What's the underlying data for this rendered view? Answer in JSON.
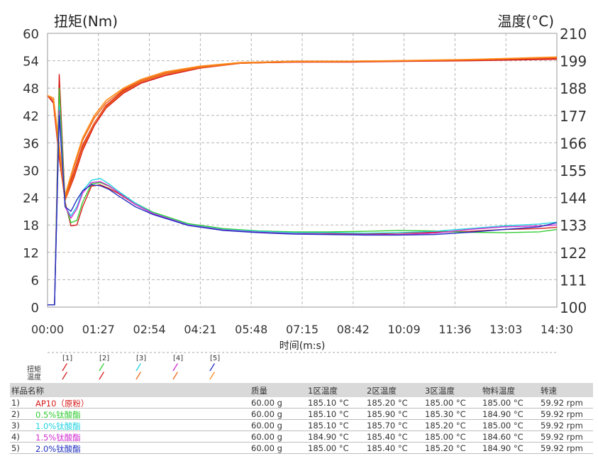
{
  "chart_data": {
    "type": "line",
    "y_left_label": "扭矩(Nm)",
    "y_right_label": "温度(°C)",
    "xlabel": "时间(m:s)",
    "x_ticks": [
      "00:00",
      "01:27",
      "02:54",
      "04:21",
      "05:48",
      "07:15",
      "08:42",
      "10:09",
      "11:36",
      "13:03",
      "14:30"
    ],
    "y_left_ticks": [
      "0",
      "6",
      "12",
      "18",
      "24",
      "30",
      "36",
      "42",
      "48",
      "54",
      "60"
    ],
    "y_right_ticks": [
      "100",
      "111",
      "122",
      "133",
      "144",
      "155",
      "166",
      "177",
      "188",
      "199",
      "210"
    ],
    "xlim_seconds": [
      0,
      870
    ],
    "ylim_left": [
      0,
      60
    ],
    "ylim_right": [
      100,
      210
    ],
    "grid": true,
    "torque_series": [
      {
        "name": "[1]",
        "color": "#d81b1b",
        "x": [
          0,
          12,
          20,
          30,
          40,
          50,
          60,
          75,
          90,
          105,
          120,
          150,
          180,
          240,
          300,
          360,
          420,
          480,
          540,
          600,
          660,
          720,
          780,
          840,
          870
        ],
        "y": [
          0.5,
          0.5,
          51,
          23,
          17.8,
          18,
          22,
          26.5,
          26.8,
          26,
          25,
          22.5,
          20.5,
          18,
          17,
          16.5,
          16.3,
          16.2,
          16,
          16.2,
          16.4,
          16.6,
          17,
          17.2,
          17.5
        ]
      },
      {
        "name": "[2]",
        "color": "#33cc33",
        "x": [
          0,
          12,
          20,
          30,
          40,
          50,
          60,
          75,
          90,
          105,
          120,
          150,
          180,
          240,
          300,
          360,
          420,
          480,
          540,
          600,
          660,
          720,
          780,
          840,
          870
        ],
        "y": [
          0.5,
          0.5,
          48,
          22.5,
          18.5,
          19,
          23,
          27,
          27.3,
          26.5,
          25.2,
          22.8,
          20.8,
          18.3,
          17.2,
          16.7,
          16.5,
          16.5,
          16.6,
          16.8,
          16.7,
          16.4,
          16.3,
          16.5,
          17
        ]
      },
      {
        "name": "[3]",
        "color": "#22d3e0",
        "x": [
          0,
          12,
          20,
          30,
          40,
          50,
          60,
          75,
          90,
          105,
          120,
          150,
          180,
          240,
          300,
          360,
          420,
          480,
          540,
          600,
          660,
          720,
          780,
          840,
          870
        ],
        "y": [
          0.5,
          0.5,
          44,
          22,
          20,
          22,
          25.5,
          27.8,
          28.2,
          27,
          25.5,
          22.8,
          20.6,
          18.1,
          17,
          16.6,
          16.3,
          16.3,
          16.2,
          16.3,
          16.6,
          17.2,
          17.8,
          18.2,
          18.6
        ]
      },
      {
        "name": "[4]",
        "color": "#d02cd0",
        "x": [
          0,
          12,
          20,
          30,
          40,
          50,
          60,
          75,
          90,
          105,
          120,
          150,
          180,
          240,
          300,
          360,
          420,
          480,
          540,
          600,
          660,
          720,
          780,
          840,
          870
        ],
        "y": [
          0.5,
          0.5,
          43,
          22,
          19.5,
          21.5,
          25,
          27.3,
          27.5,
          26.6,
          25.2,
          22.5,
          20.5,
          18,
          16.9,
          16.4,
          16.1,
          16.0,
          15.9,
          15.9,
          16.2,
          17,
          17.6,
          17.8,
          18
        ]
      },
      {
        "name": "[5]",
        "color": "#1f2fbf",
        "x": [
          0,
          12,
          20,
          30,
          40,
          50,
          60,
          75,
          90,
          105,
          120,
          150,
          180,
          240,
          300,
          360,
          420,
          480,
          540,
          600,
          660,
          720,
          780,
          840,
          870
        ],
        "y": [
          0.5,
          0.5,
          42,
          22,
          21,
          23.5,
          25.5,
          26.8,
          26.6,
          25.8,
          24.5,
          22,
          20.3,
          17.9,
          16.8,
          16.3,
          16.0,
          15.9,
          15.8,
          15.8,
          15.9,
          16.4,
          17,
          17.6,
          18.5
        ]
      }
    ],
    "temperature_series": [
      {
        "name": "[1]",
        "color": "#d81b1b",
        "x": [
          0,
          10,
          20,
          30,
          45,
          60,
          80,
          100,
          130,
          160,
          200,
          260,
          330,
          420,
          520,
          620,
          720,
          800,
          870
        ],
        "y": [
          185,
          182,
          160,
          143,
          152,
          163,
          173,
          180,
          186,
          190,
          193,
          196,
          198,
          198.5,
          198.5,
          198.8,
          199,
          199.3,
          199.6
        ]
      },
      {
        "name": "[2]",
        "color": "#d81b1b",
        "x": [
          0,
          10,
          20,
          30,
          45,
          60,
          80,
          100,
          130,
          160,
          200,
          260,
          330,
          420,
          520,
          620,
          720,
          800,
          870
        ],
        "y": [
          185,
          183,
          163,
          144,
          154,
          165,
          174,
          181,
          187,
          191,
          194,
          196.5,
          198,
          198.5,
          198.6,
          198.9,
          199.2,
          199.6,
          200
        ]
      },
      {
        "name": "[3]",
        "color": "#ee6a1a",
        "x": [
          0,
          10,
          20,
          30,
          45,
          60,
          80,
          100,
          130,
          160,
          200,
          260,
          330,
          420,
          520,
          620,
          720,
          800,
          870
        ],
        "y": [
          185,
          184,
          164,
          144,
          156,
          167,
          176,
          182,
          187.5,
          191,
          194,
          196.5,
          198.2,
          198.8,
          198.8,
          199,
          199.3,
          199.8,
          200.2
        ]
      },
      {
        "name": "[4]",
        "color": "#ee6a1a",
        "x": [
          0,
          10,
          20,
          30,
          45,
          60,
          80,
          100,
          130,
          160,
          200,
          260,
          330,
          420,
          520,
          620,
          720,
          800,
          870
        ],
        "y": [
          185,
          183,
          162,
          143,
          153,
          164,
          174,
          180.5,
          186.5,
          190.5,
          193.5,
          196.2,
          198,
          198.6,
          198.7,
          199,
          199.4,
          199.9,
          200.4
        ]
      },
      {
        "name": "[5]",
        "color": "#ff8c1a",
        "x": [
          0,
          10,
          20,
          30,
          45,
          60,
          80,
          100,
          130,
          160,
          200,
          260,
          330,
          420,
          520,
          620,
          720,
          800,
          870
        ],
        "y": [
          185,
          184,
          165,
          145,
          157,
          168,
          177,
          183,
          188,
          191.5,
          194.5,
          196.8,
          198.3,
          198.7,
          198.8,
          199.1,
          199.5,
          200,
          200.5
        ]
      }
    ]
  },
  "legend": {
    "row_torque": "扭矩",
    "row_temp": "温度",
    "items": [
      {
        "num": "[1]",
        "torque_color": "#d81b1b",
        "temp_color": "#d81b1b"
      },
      {
        "num": "[2]",
        "torque_color": "#33cc33",
        "temp_color": "#d81b1b"
      },
      {
        "num": "[3]",
        "torque_color": "#22d3e0",
        "temp_color": "#ee6a1a"
      },
      {
        "num": "[4]",
        "torque_color": "#d02cd0",
        "temp_color": "#ee6a1a"
      },
      {
        "num": "[5]",
        "torque_color": "#1f2fbf",
        "temp_color": "#ff8c1a"
      }
    ]
  },
  "table": {
    "headers": {
      "name": "样品名称",
      "mass": "质量",
      "z1": "1区温度",
      "z2": "2区温度",
      "z3": "3区温度",
      "mt": "物料温度",
      "spd": "转速"
    },
    "rows": [
      {
        "idx": "1)",
        "name": "AP10（原粉）",
        "color": "#d81b1b",
        "mass": "60.00 g",
        "z1": "185.10 °C",
        "z2": "185.20 °C",
        "z3": "185.00 °C",
        "mt": "185.00 °C",
        "spd": "59.92 rpm"
      },
      {
        "idx": "2)",
        "name": "0.5%钛酸酯",
        "color": "#33cc33",
        "mass": "60.00 g",
        "z1": "185.10 °C",
        "z2": "185.90 °C",
        "z3": "185.30 °C",
        "mt": "184.90 °C",
        "spd": "59.92 rpm"
      },
      {
        "idx": "3)",
        "name": "1.0%钛酸酯",
        "color": "#22d3e0",
        "mass": "60.00 g",
        "z1": "185.10 °C",
        "z2": "185.70 °C",
        "z3": "185.20 °C",
        "mt": "185.00 °C",
        "spd": "59.92 rpm"
      },
      {
        "idx": "4)",
        "name": "1.5%钛酸酯",
        "color": "#d02cd0",
        "mass": "60.00 g",
        "z1": "184.90 °C",
        "z2": "185.40 °C",
        "z3": "185.00 °C",
        "mt": "184.60 °C",
        "spd": "59.92 rpm"
      },
      {
        "idx": "5)",
        "name": "2.0%钛酸酯",
        "color": "#1f2fbf",
        "mass": "60.00 g",
        "z1": "185.00 °C",
        "z2": "185.40 °C",
        "z3": "185.20 °C",
        "mt": "184.90 °C",
        "spd": "59.92 rpm"
      }
    ]
  }
}
